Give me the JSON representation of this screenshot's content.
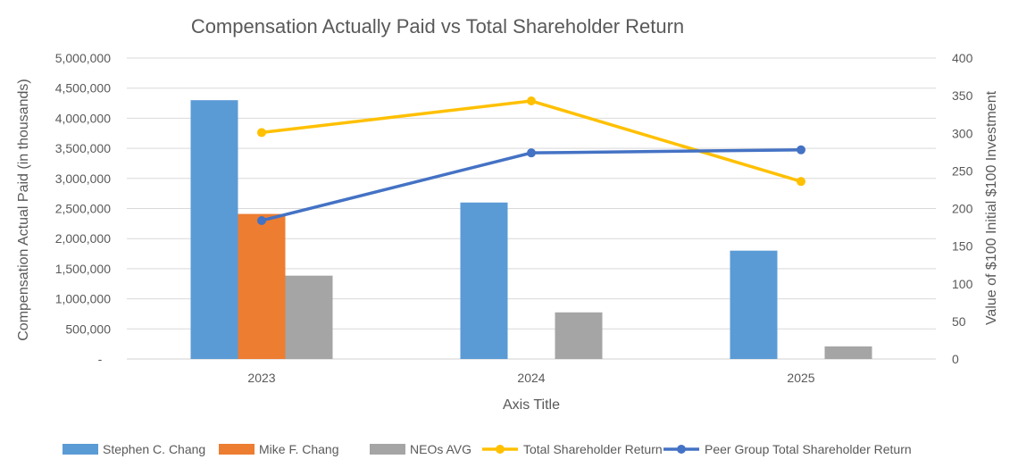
{
  "chart_data": {
    "type": "bar",
    "title": "Compensation Actually Paid vs Total Shareholder Return",
    "xlabel": "Axis Title",
    "ylabel": "Compensation Actual Paid (in thousands)",
    "y2label": "Value of $100 Initial $100 Investment",
    "categories": [
      "2023",
      "2024",
      "2025"
    ],
    "ylim": [
      0,
      5000000
    ],
    "y2lim": [
      0,
      400
    ],
    "yticks": [
      "-",
      "500,000",
      "1,000,000",
      "1,500,000",
      "2,000,000",
      "2,500,000",
      "3,000,000",
      "3,500,000",
      "4,000,000",
      "4,500,000",
      "5,000,000"
    ],
    "y2ticks": [
      "0",
      "50",
      "100",
      "150",
      "200",
      "250",
      "300",
      "350",
      "400"
    ],
    "grid": true,
    "legend_position": "bottom",
    "bar_series": [
      {
        "name": "Stephen C. Chang",
        "color": "#5B9BD5",
        "values": [
          4300000,
          2600000,
          1800000
        ]
      },
      {
        "name": "Mike F. Chang",
        "color": "#ED7D31",
        "values": [
          2410000,
          null,
          null
        ]
      },
      {
        "name": "NEOs AVG",
        "color": "#A5A5A5",
        "values": [
          1385000,
          775000,
          210000
        ]
      }
    ],
    "line_series": [
      {
        "name": "Total Shareholder Return",
        "color": "#FFC000",
        "axis": "right",
        "values": [
          301,
          343,
          236
        ]
      },
      {
        "name": "Peer Group Total Shareholder Return",
        "color": "#4472C4",
        "axis": "right",
        "values": [
          184,
          274,
          278
        ]
      }
    ]
  }
}
